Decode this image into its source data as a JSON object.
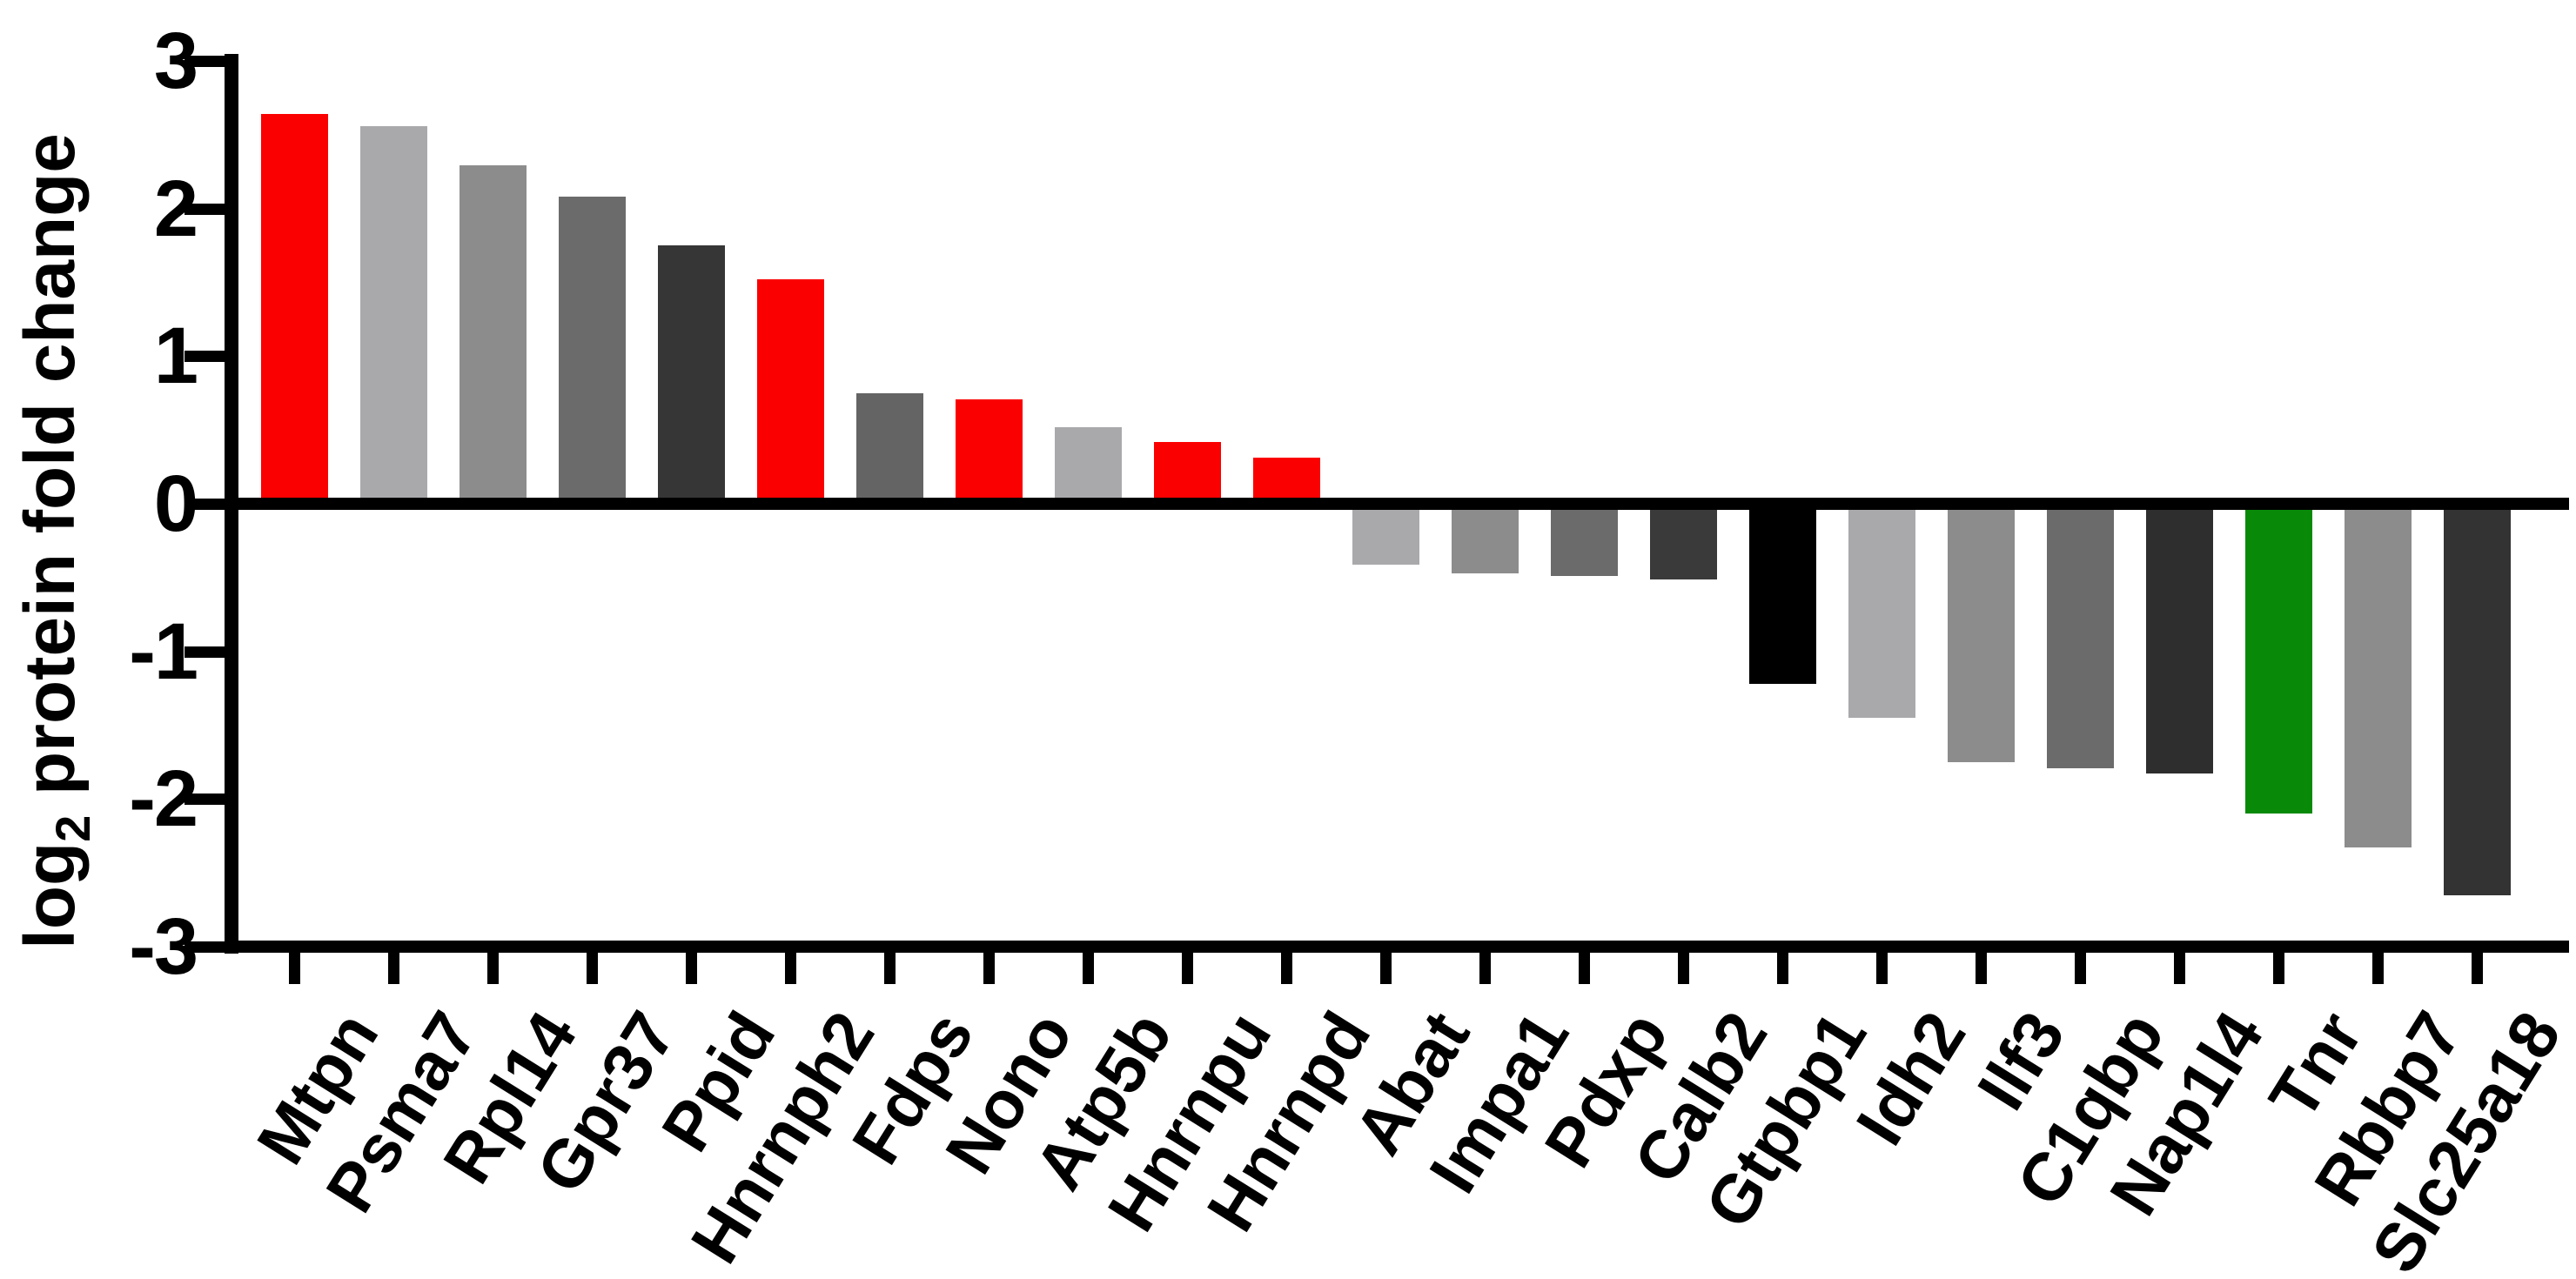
{
  "figure": {
    "background_color": "#FFFFFF",
    "axis_color": "#000000",
    "text_color": "#000000"
  },
  "chart_data": {
    "type": "bar",
    "title": "",
    "ylabel_prefix": "log",
    "ylabel_sub": "2",
    "ylabel_rest": " protein fold change",
    "ylabel_full": "log2 protein fold change",
    "xlabel": "",
    "ylim": [
      -3,
      3
    ],
    "ytick_labels": [
      "3",
      "2",
      "1",
      "0",
      "-1",
      "-2",
      "-3"
    ],
    "ytick_values": [
      3,
      2,
      1,
      0,
      -1,
      -2,
      -3
    ],
    "grid": false,
    "legend": "none",
    "bar_orientation": "vertical",
    "x_label_rotation_deg": -58,
    "categories": [
      "Mtpn",
      "Psma7",
      "Rpl14",
      "Gpr37",
      "Ppid",
      "Hnrnph2",
      "Fdps",
      "Nono",
      "Atp5b",
      "Hnrnpu",
      "Hnrnpd",
      "Abat",
      "Impa1",
      "Pdxp",
      "Calb2",
      "Gtpbp1",
      "Idh2",
      "Ilf3",
      "C1qbp",
      "Nap1l4",
      "Tnr",
      "Rbbp7",
      "Slc25a18"
    ],
    "values": [
      2.64,
      2.56,
      2.29,
      2.08,
      1.75,
      1.52,
      0.75,
      0.71,
      0.52,
      0.42,
      0.31,
      -0.41,
      -0.47,
      -0.49,
      -0.51,
      -1.22,
      -1.45,
      -1.75,
      -1.79,
      -1.83,
      -2.1,
      -2.33,
      -2.65
    ],
    "bar_colors": [
      "#FB0000",
      "#A9A9AC",
      "#8C8C8C",
      "#6B6B6B",
      "#363636",
      "#FB0000",
      "#646464",
      "#FB0000",
      "#A9A9AC",
      "#FB0000",
      "#FB0000",
      "#A9A9AC",
      "#8C8C8C",
      "#6B6B6B",
      "#3A3A3A",
      "#000000",
      "#A9A9AC",
      "#8C8C8C",
      "#6B6B6B",
      "#2E2E2E",
      "#088A08",
      "#8C8C8C",
      "#333333"
    ],
    "highlight_colors": {
      "red": "#FB0000",
      "green": "#088A08"
    }
  }
}
